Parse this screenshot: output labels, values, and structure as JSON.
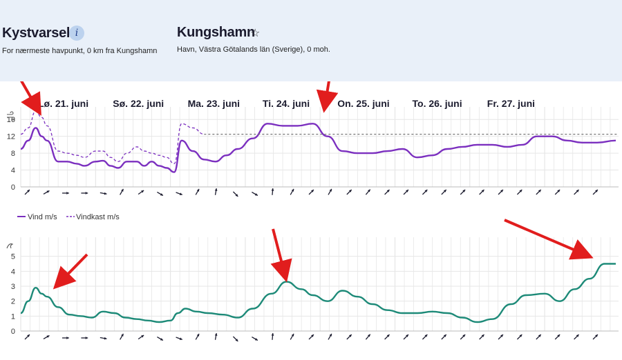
{
  "header": {
    "title": "Kystvarsel",
    "info_icon": "info-icon",
    "subtitle": "For nærmeste havpunkt, 0 km fra Kungshamn",
    "location_name": "Kungshamn",
    "star_icon": "star-icon",
    "location_sub": "Havn, Västra Götalands län (Sverige), 0 moh."
  },
  "days": [
    "Lø. 21. juni",
    "Sø. 22. juni",
    "Ma. 23. juni",
    "Ti. 24. juni",
    "On. 25. juni",
    "To. 26. juni",
    "Fr. 27. juni"
  ],
  "legend": {
    "wind": "Vind m/s",
    "gust": "Vindkast m/s"
  },
  "colors": {
    "wind": "#7b2fbf",
    "wave": "#1d8a78",
    "arrows": "#e11d1d",
    "grid": "#e6e6e6"
  },
  "chart_data": [
    {
      "type": "line",
      "x_unit": "day index (0 = Lø. 21. juni 00:00)",
      "ylim": [
        0,
        18
      ],
      "yticks": [
        0,
        4,
        8,
        12,
        16
      ],
      "y_icon": "wind-icon",
      "series": [
        {
          "name": "Vind m/s",
          "color": "#7b2fbf",
          "style": "solid",
          "x": [
            0,
            0.1,
            0.2,
            0.28,
            0.35,
            0.5,
            0.62,
            0.75,
            0.85,
            1.0,
            1.1,
            1.2,
            1.3,
            1.42,
            1.55,
            1.65,
            1.75,
            1.85,
            1.95,
            2.05,
            2.15,
            2.3,
            2.45,
            2.6,
            2.75,
            2.9,
            3.1,
            3.3,
            3.5,
            3.7,
            3.9,
            4.1,
            4.3,
            4.5,
            4.7,
            4.9,
            5.1,
            5.3,
            5.5,
            5.7,
            5.9,
            6.1,
            6.3,
            6.5,
            6.7,
            6.9,
            7.1,
            7.3,
            7.5,
            7.7,
            7.95
          ],
          "values": [
            9,
            11,
            14,
            12,
            11,
            6,
            6,
            5.5,
            5,
            6,
            6.2,
            5,
            4.5,
            6,
            6,
            5,
            6,
            5,
            4.5,
            3.5,
            11,
            8.5,
            6.5,
            6,
            7.5,
            9,
            11.5,
            15,
            14.5,
            14.5,
            15,
            12,
            8.5,
            8,
            8,
            8.5,
            9,
            7,
            7.5,
            9,
            9.5,
            10,
            10,
            9.5,
            10,
            12,
            12,
            11,
            10.5,
            10.5,
            11
          ]
        },
        {
          "name": "Vindkast m/s",
          "color": "#7b2fbf",
          "style": "dashed",
          "x": [
            0,
            0.1,
            0.2,
            0.28,
            0.35,
            0.5,
            0.62,
            0.75,
            0.85,
            1.0,
            1.1,
            1.2,
            1.3,
            1.42,
            1.55,
            1.65,
            1.75,
            1.85,
            1.95,
            2.05,
            2.15,
            2.3,
            2.45,
            2.6,
            2.75,
            2.9,
            3.1,
            3.3,
            3.5,
            3.7,
            3.9,
            4.1,
            4.3,
            4.5,
            4.7,
            4.9,
            5.1,
            5.3,
            5.5,
            5.7,
            5.9,
            6.1,
            6.3,
            6.5,
            6.7,
            6.9,
            7.1,
            7.3,
            7.5,
            7.7,
            7.95
          ],
          "values": [
            12.5,
            14,
            18,
            16.5,
            14.5,
            8.5,
            8,
            7.5,
            7,
            8.5,
            8.5,
            7,
            6,
            8,
            9.5,
            8.5,
            8,
            7.5,
            7,
            5.5,
            15,
            14,
            12.5,
            12.5,
            12.5,
            12.5,
            12.5,
            12.5,
            12.5,
            12.5,
            12.5,
            12.5,
            12.5,
            12.5,
            12.5,
            12.5,
            12.5,
            12.5,
            12.5,
            12.5,
            12.5,
            12.5,
            12.5,
            12.5,
            12.5,
            12.5,
            12.5,
            12.5,
            12.5,
            12.5,
            12.5
          ]
        }
      ]
    },
    {
      "type": "line",
      "x_unit": "day index (0 = Lø. 21. juni 00:00)",
      "ylim": [
        0,
        6
      ],
      "yticks": [
        0,
        1,
        2,
        3,
        4,
        5
      ],
      "y_icon": "wave-icon",
      "series": [
        {
          "name": "",
          "color": "#1d8a78",
          "style": "solid",
          "x": [
            0,
            0.1,
            0.2,
            0.28,
            0.35,
            0.5,
            0.65,
            0.8,
            0.95,
            1.1,
            1.25,
            1.4,
            1.55,
            1.7,
            1.85,
            2.0,
            2.1,
            2.2,
            2.35,
            2.5,
            2.7,
            2.9,
            3.1,
            3.35,
            3.55,
            3.75,
            3.9,
            4.1,
            4.3,
            4.5,
            4.7,
            4.9,
            5.1,
            5.3,
            5.5,
            5.7,
            5.9,
            6.1,
            6.3,
            6.55,
            6.75,
            7.0,
            7.2,
            7.4,
            7.6,
            7.8,
            7.95
          ],
          "values": [
            1.2,
            2.0,
            2.9,
            2.5,
            2.3,
            1.6,
            1.1,
            1.0,
            0.9,
            1.3,
            1.2,
            0.9,
            0.8,
            0.7,
            0.6,
            0.7,
            1.2,
            1.5,
            1.3,
            1.2,
            1.1,
            0.9,
            1.5,
            2.5,
            3.3,
            2.8,
            2.4,
            2.0,
            2.7,
            2.3,
            1.8,
            1.4,
            1.2,
            1.2,
            1.3,
            1.2,
            0.9,
            0.6,
            0.8,
            1.8,
            2.4,
            2.5,
            2.0,
            2.8,
            3.5,
            4.5,
            4.5
          ]
        }
      ]
    }
  ],
  "direction_arrows_icon": "direction-arrow-icon"
}
